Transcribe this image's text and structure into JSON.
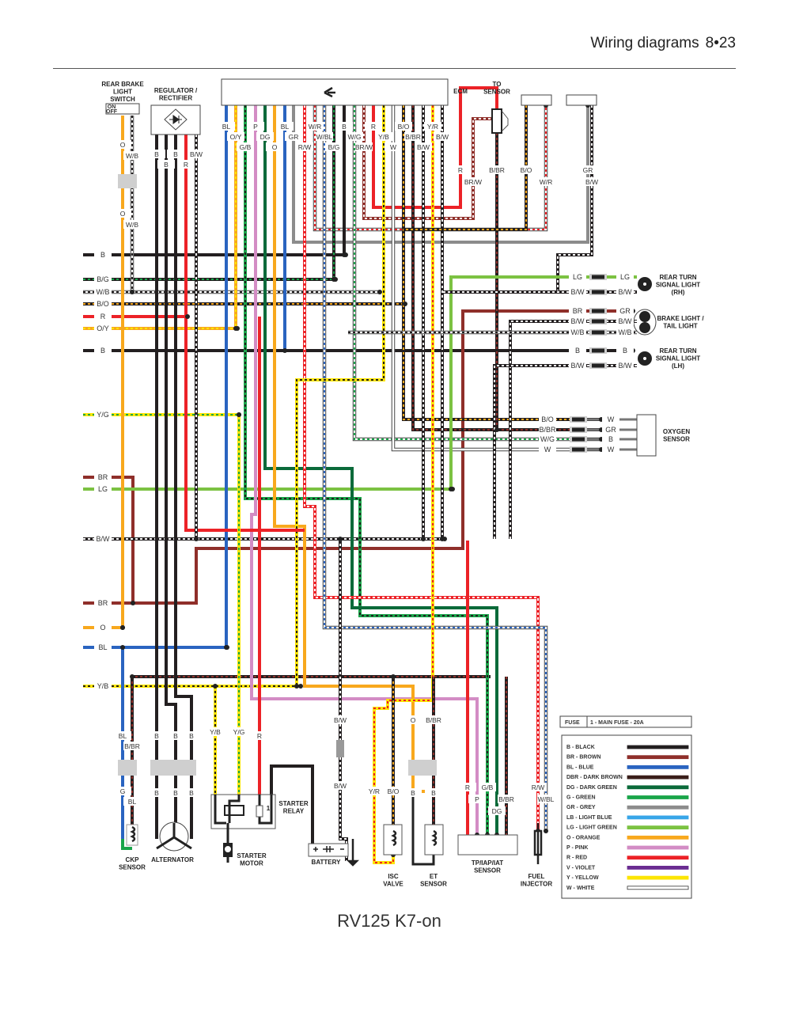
{
  "header": {
    "title": "Wiring diagrams",
    "page": "8•23"
  },
  "caption": "RV125 K7-on",
  "components": {
    "rear_brake_switch": [
      "REAR BRAKE",
      "LIGHT",
      "SWITCH"
    ],
    "switch_positions": [
      "ON",
      "OFF"
    ],
    "regulator": [
      "REGULATOR /",
      "RECTIFIER"
    ],
    "ecm": [
      "ECM"
    ],
    "to_sensor": [
      "TO",
      "SENSOR"
    ],
    "rear_turn_rh": [
      "REAR TURN",
      "SIGNAL LIGHT",
      "(RH)"
    ],
    "brake_tail": [
      "BRAKE LIGHT /",
      "TAIL LIGHT"
    ],
    "rear_turn_lh": [
      "REAR TURN",
      "SIGNAL LIGHT",
      "(LH)"
    ],
    "oxygen": [
      "OXYGEN",
      "SENSOR"
    ],
    "ckp": [
      "CKP",
      "SENSOR"
    ],
    "alternator": [
      "ALTERNATOR"
    ],
    "starter_motor": [
      "STARTER",
      "MOTOR"
    ],
    "starter_relay": [
      "STARTER",
      "RELAY"
    ],
    "relay_fuse": "1",
    "battery": [
      "BATTERY"
    ],
    "isc": [
      "ISC",
      "VALVE"
    ],
    "et": [
      "ET",
      "SENSOR"
    ],
    "tp": [
      "TP/IAP/IAT",
      "SENSOR"
    ],
    "injector": [
      "FUEL",
      "INJECTOR"
    ]
  },
  "left_bus_labels": [
    "B",
    "B/G",
    "W/B",
    "B/O",
    "R",
    "O/Y",
    "B",
    "Y/G",
    "BR",
    "LG",
    "B/W",
    "BR",
    "O",
    "BL",
    "Y/B"
  ],
  "ecm_wire_labels": [
    "BL",
    "O/Y",
    "G/B",
    "P",
    "DG",
    "O",
    "BL",
    "GR",
    "R/W",
    "W/R",
    "W/BL",
    "B/G",
    "B",
    "W/G",
    "BR/W",
    "R",
    "Y/B",
    "W",
    "B/O",
    "B/BR",
    "B/W",
    "Y/R",
    "B/W"
  ],
  "switch_wire_labels": [
    "O",
    "W/B",
    "O",
    "W/B"
  ],
  "regulator_wire_labels": [
    "B",
    "B",
    "B",
    "R",
    "B/W"
  ],
  "right_top_labels": [
    "R",
    "BR/W",
    "B/BR",
    "B/O",
    "W/R",
    "GR",
    "B/W"
  ],
  "lamp_connector_labels": [
    [
      "LG",
      "LG"
    ],
    [
      "B/W",
      "B/W"
    ],
    [
      "BR",
      "GR"
    ],
    [
      "B/W",
      "B/W"
    ],
    [
      "W/B",
      "W/B"
    ],
    [
      "B",
      "B"
    ],
    [
      "B/W",
      "B/W"
    ]
  ],
  "oxygen_labels": [
    [
      "B/O",
      "W"
    ],
    [
      "B/BR",
      "GR"
    ],
    [
      "W/G",
      "B"
    ],
    [
      "W",
      "W"
    ]
  ],
  "bottom_labels": {
    "ckp_upper": [
      "BL",
      "B/BR"
    ],
    "ckp_lower": [
      "G",
      "BL"
    ],
    "alt_upper": [
      "B",
      "B",
      "B"
    ],
    "alt_lower": [
      "B",
      "B",
      "B"
    ],
    "relay": [
      "Y/B",
      "Y/G",
      "R"
    ],
    "battery": [
      "B/W",
      "B/W"
    ],
    "isc": [
      "Y/R",
      "B/O"
    ],
    "et_upper": [
      "O",
      "B/BR"
    ],
    "et_lower": [
      "B",
      "B"
    ],
    "tp": [
      "R",
      "P",
      "G/B",
      "DG",
      "B/BR"
    ],
    "injector": [
      "R/W",
      "W/BL"
    ]
  },
  "legend": {
    "fuse_label": "FUSE",
    "fuse_value": "1 - MAIN FUSE - 20A",
    "items": [
      {
        "label": "B - BLACK",
        "color": "#231f20"
      },
      {
        "label": "BR - BROWN",
        "color": "#8f2f2a"
      },
      {
        "label": "BL - BLUE",
        "color": "#2a64c0"
      },
      {
        "label": "DBR - DARK BROWN",
        "color": "#3a1f1a"
      },
      {
        "label": "DG - DARK GREEN",
        "color": "#0b6a3a"
      },
      {
        "label": "G - GREEN",
        "color": "#1aa54a"
      },
      {
        "label": "GR - GREY",
        "color": "#8c8c8c"
      },
      {
        "label": "LB - LIGHT BLUE",
        "color": "#38a6e8"
      },
      {
        "label": "LG - LIGHT GREEN",
        "color": "#7cc242"
      },
      {
        "label": "O - ORANGE",
        "color": "#f8a81d"
      },
      {
        "label": "P - PINK",
        "color": "#d38cc4"
      },
      {
        "label": "R - RED",
        "color": "#ec2227"
      },
      {
        "label": "V - VIOLET",
        "color": "#6a2c91"
      },
      {
        "label": "Y - YELLOW",
        "color": "#fce500"
      },
      {
        "label": "W - WHITE",
        "color": "#ffffff"
      }
    ]
  }
}
